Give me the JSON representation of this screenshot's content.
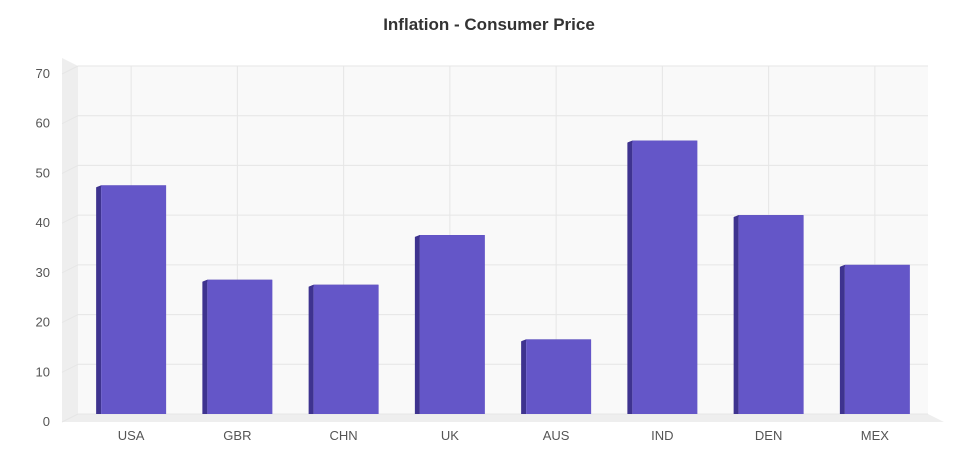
{
  "chart_data": {
    "type": "bar",
    "title": "Inflation - Consumer Price",
    "categories": [
      "USA",
      "GBR",
      "CHN",
      "UK",
      "AUS",
      "IND",
      "DEN",
      "MEX"
    ],
    "values": [
      46,
      27,
      26,
      36,
      15,
      55,
      40,
      30
    ],
    "ylim": [
      0,
      70
    ],
    "yticks": [
      0,
      10,
      20,
      30,
      40,
      50,
      60,
      70
    ],
    "xlabel": "",
    "ylabel": "",
    "grid": true,
    "style": "3d",
    "colors": {
      "bar_front": "#6456c8",
      "bar_side": "#3e338f",
      "bar_top": "#7a6fd6",
      "plot_bg": "#f9f9f9",
      "wall": "#eeeeee",
      "grid": "#e6e6e6"
    }
  }
}
